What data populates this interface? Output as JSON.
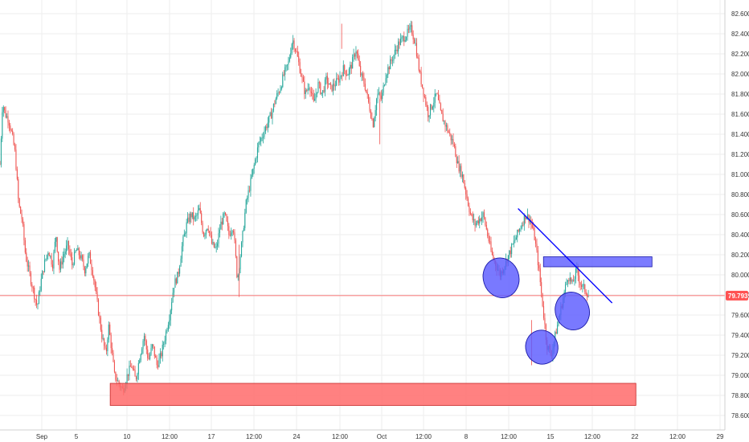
{
  "chart_data": {
    "type": "candlestick",
    "y_axis": {
      "ticks": [
        "82.600",
        "82.400",
        "82.200",
        "82.000",
        "81.800",
        "81.600",
        "81.400",
        "81.200",
        "81.000",
        "80.800",
        "80.600",
        "80.400",
        "80.200",
        "80.000",
        "79.800",
        "79.600",
        "79.400",
        "79.200",
        "79.000",
        "78.800",
        "78.600"
      ],
      "range": [
        78.52,
        82.68
      ],
      "position": "right"
    },
    "x_axis": {
      "ticks": [
        "Sep",
        "5",
        "10",
        "12:00",
        "17",
        "12:00",
        "24",
        "12:00",
        "Oct",
        "12:00",
        "8",
        "12:00",
        "15",
        "12:00",
        "22",
        "12:00",
        "29"
      ]
    },
    "current_price": {
      "label": "79.793",
      "value": 79.793,
      "color": "#ff5252"
    },
    "colors": {
      "up": "#26a69a",
      "down": "#ef5350",
      "annotation_blue": "#0000ff",
      "annotation_fill_blue": "#5b5bff",
      "annotation_fill_red": "#ff6b6b",
      "crosshair": "#ff5252"
    },
    "price_path": [
      [
        0.0,
        81.1
      ],
      [
        0.3,
        81.72
      ],
      [
        0.6,
        81.6
      ],
      [
        1.0,
        81.55
      ],
      [
        1.4,
        81.4
      ],
      [
        1.8,
        81.2
      ],
      [
        2.2,
        80.7
      ],
      [
        2.6,
        80.55
      ],
      [
        3.0,
        80.2
      ],
      [
        3.5,
        80.0
      ],
      [
        4.0,
        79.82
      ],
      [
        4.4,
        79.68
      ],
      [
        4.8,
        79.92
      ],
      [
        5.2,
        80.1
      ],
      [
        5.7,
        80.25
      ],
      [
        6.2,
        80.1
      ],
      [
        6.6,
        80.4
      ],
      [
        7.0,
        80.05
      ],
      [
        7.5,
        80.2
      ],
      [
        8.0,
        80.3
      ],
      [
        8.5,
        80.1
      ],
      [
        9.0,
        80.25
      ],
      [
        9.5,
        80.18
      ],
      [
        10.0,
        80.05
      ],
      [
        10.5,
        80.2
      ],
      [
        11.0,
        80.0
      ],
      [
        11.5,
        79.7
      ],
      [
        12.0,
        79.4
      ],
      [
        12.5,
        79.2
      ],
      [
        12.8,
        79.5
      ],
      [
        13.1,
        79.3
      ],
      [
        13.5,
        79.0
      ],
      [
        14.0,
        78.92
      ],
      [
        14.5,
        78.85
      ],
      [
        15.0,
        79.0
      ],
      [
        15.5,
        79.1
      ],
      [
        16.0,
        78.95
      ],
      [
        16.5,
        79.2
      ],
      [
        17.0,
        79.4
      ],
      [
        17.5,
        79.15
      ],
      [
        18.0,
        79.3
      ],
      [
        18.5,
        79.1
      ],
      [
        19.0,
        79.2
      ],
      [
        19.5,
        79.4
      ],
      [
        20.0,
        79.6
      ],
      [
        20.5,
        79.9
      ],
      [
        21.0,
        80.0
      ],
      [
        21.5,
        80.3
      ],
      [
        22.0,
        80.5
      ],
      [
        22.5,
        80.6
      ],
      [
        23.0,
        80.55
      ],
      [
        23.5,
        80.65
      ],
      [
        24.0,
        80.4
      ],
      [
        24.5,
        80.5
      ],
      [
        25.0,
        80.3
      ],
      [
        25.5,
        80.25
      ],
      [
        26.0,
        80.5
      ],
      [
        26.5,
        80.6
      ],
      [
        27.0,
        80.4
      ],
      [
        27.5,
        80.5
      ],
      [
        28.0,
        79.95
      ],
      [
        28.5,
        80.3
      ],
      [
        29.0,
        80.7
      ],
      [
        29.5,
        80.9
      ],
      [
        30.0,
        81.1
      ],
      [
        30.5,
        81.3
      ],
      [
        31.0,
        81.4
      ],
      [
        31.5,
        81.5
      ],
      [
        32.0,
        81.6
      ],
      [
        32.5,
        81.75
      ],
      [
        33.0,
        81.85
      ],
      [
        33.5,
        82.0
      ],
      [
        34.0,
        82.1
      ],
      [
        34.5,
        82.35
      ],
      [
        35.0,
        82.2
      ],
      [
        35.5,
        82.0
      ],
      [
        36.0,
        81.8
      ],
      [
        36.5,
        81.9
      ],
      [
        37.0,
        81.7
      ],
      [
        37.5,
        81.9
      ],
      [
        38.0,
        81.8
      ],
      [
        38.5,
        81.95
      ],
      [
        39.0,
        81.85
      ],
      [
        39.5,
        81.9
      ],
      [
        40.0,
        81.95
      ],
      [
        40.5,
        82.05
      ],
      [
        41.0,
        82.0
      ],
      [
        41.5,
        82.1
      ],
      [
        42.0,
        82.25
      ],
      [
        42.5,
        82.0
      ],
      [
        43.0,
        81.9
      ],
      [
        43.5,
        81.7
      ],
      [
        44.0,
        81.5
      ],
      [
        44.5,
        81.8
      ],
      [
        45.0,
        81.75
      ],
      [
        45.5,
        82.0
      ],
      [
        46.0,
        82.1
      ],
      [
        46.5,
        82.2
      ],
      [
        47.0,
        82.3
      ],
      [
        47.5,
        82.35
      ],
      [
        48.0,
        82.4
      ],
      [
        48.5,
        82.45
      ],
      [
        49.0,
        82.3
      ],
      [
        49.5,
        82.0
      ],
      [
        50.0,
        81.8
      ],
      [
        50.5,
        81.6
      ],
      [
        51.0,
        81.7
      ],
      [
        51.5,
        81.8
      ],
      [
        52.0,
        81.6
      ],
      [
        52.5,
        81.5
      ],
      [
        53.0,
        81.4
      ],
      [
        53.5,
        81.3
      ],
      [
        54.0,
        81.1
      ],
      [
        54.5,
        81.0
      ],
      [
        55.0,
        80.8
      ],
      [
        55.5,
        80.6
      ],
      [
        56.0,
        80.5
      ],
      [
        56.5,
        80.55
      ],
      [
        57.0,
        80.6
      ],
      [
        57.5,
        80.4
      ],
      [
        58.0,
        80.2
      ],
      [
        58.5,
        80.1
      ],
      [
        59.0,
        80.0
      ],
      [
        59.5,
        80.1
      ],
      [
        60.0,
        80.2
      ],
      [
        60.5,
        80.3
      ],
      [
        61.0,
        80.4
      ],
      [
        61.5,
        80.5
      ],
      [
        62.0,
        80.6
      ],
      [
        62.5,
        80.55
      ],
      [
        63.0,
        80.4
      ],
      [
        63.5,
        80.1
      ],
      [
        64.0,
        79.7
      ],
      [
        64.5,
        79.3
      ],
      [
        65.0,
        79.2
      ],
      [
        65.5,
        79.4
      ],
      [
        66.0,
        79.6
      ],
      [
        66.5,
        79.8
      ],
      [
        67.0,
        80.0
      ],
      [
        67.5,
        79.9
      ],
      [
        68.0,
        80.05
      ],
      [
        68.5,
        79.9
      ],
      [
        69.0,
        79.85
      ],
      [
        69.5,
        79.79
      ]
    ],
    "annotations": [
      {
        "kind": "zone",
        "color": "red",
        "x0": 13.0,
        "x1": 75.0,
        "y0": 78.7,
        "y1": 78.92
      },
      {
        "kind": "zone",
        "color": "blue",
        "x0": 64.1,
        "x1": 76.9,
        "y0": 80.08,
        "y1": 80.18
      },
      {
        "kind": "trendline",
        "color": "blue",
        "x0": 61.1,
        "y0": 80.66,
        "x1": 72.2,
        "y1": 79.72
      },
      {
        "kind": "ellipse",
        "color": "blue",
        "cx": 59.1,
        "cy": 79.97,
        "rx": 2.1,
        "ry": 0.2
      },
      {
        "kind": "ellipse",
        "color": "blue",
        "cx": 63.9,
        "cy": 79.28,
        "rx": 1.9,
        "ry": 0.17
      },
      {
        "kind": "ellipse",
        "color": "blue",
        "cx": 67.5,
        "cy": 79.64,
        "rx": 2.0,
        "ry": 0.19
      }
    ]
  }
}
